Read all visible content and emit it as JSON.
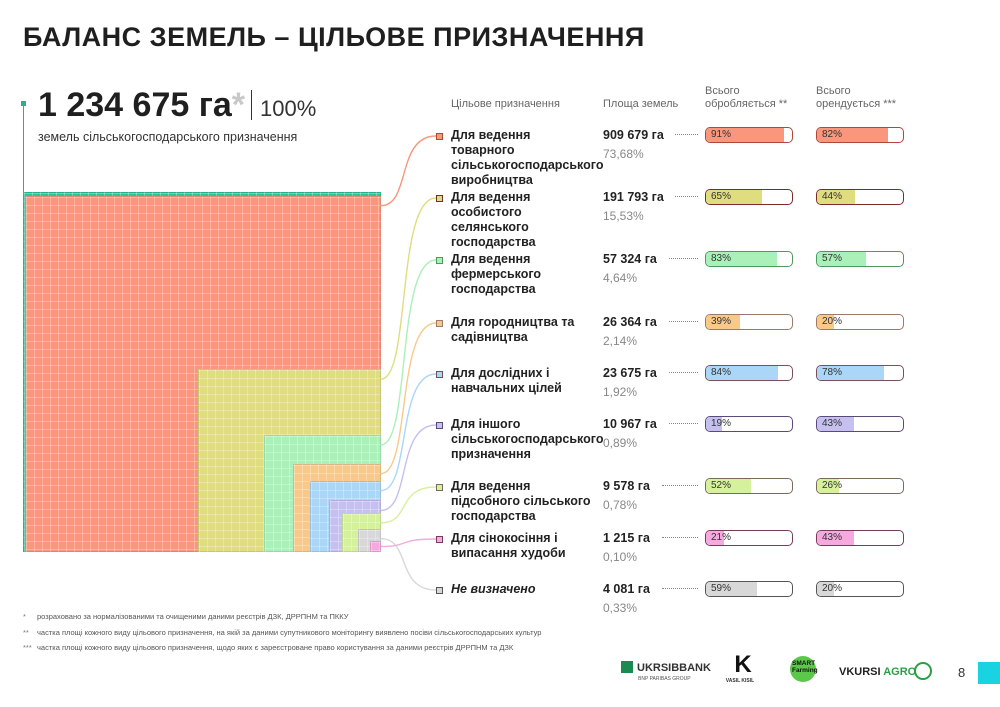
{
  "title": "БАЛАНС ЗЕМЕЛЬ – ЦІЛЬОВЕ ПРИЗНАЧЕННЯ",
  "total": {
    "value": "1 234 675 га",
    "asterisk": "*",
    "percent": "100%",
    "subtitle": "земель сільськогосподарського призначення"
  },
  "colors": {
    "total": "#2bc59a",
    "marker": "#3aa88a",
    "accent": "#19d3e0"
  },
  "headers": {
    "category": "Цільове призначення",
    "area": "Площа земель",
    "cultivated": "Всього\nобробляється **",
    "rented": "Всього\nорендується ***"
  },
  "chart_data": {
    "type": "treemap",
    "total_ha": 1234675,
    "categories": [
      "Для ведення товарного сільськогосподарського виробництва",
      "Для ведення особистого селянського господарства",
      "Для ведення фермерського господарства",
      "Для городництва та садівництва",
      "Для дослідних і навчальних цілей",
      "Для іншого сільськогосподарського призначення",
      "Для ведення підсобного сільського господарства",
      "Для сінокосіння і випасання худоби",
      "Не визначено"
    ],
    "area_ha": [
      909679,
      191793,
      57324,
      26364,
      23675,
      10967,
      9578,
      1215,
      4081
    ],
    "share_pct": [
      73.68,
      15.53,
      4.64,
      2.14,
      1.92,
      0.89,
      0.78,
      0.1,
      0.33
    ],
    "series": [
      {
        "name": "Всього обробляється **",
        "values": [
          91,
          65,
          83,
          39,
          84,
          19,
          52,
          21,
          59
        ]
      },
      {
        "name": "Всього орендується ***",
        "values": [
          82,
          44,
          57,
          20,
          78,
          43,
          26,
          43,
          20
        ]
      }
    ]
  },
  "rows": [
    {
      "label": "Для ведення товарного сільськогосподарського виробництва",
      "area": "909 679 га",
      "share": "73,68%",
      "cult_label": "91%",
      "rent_label": "82%",
      "color": "#f9967c",
      "border": "#b0483a",
      "italic": false
    },
    {
      "label": "Для ведення особистого селянського господарства",
      "area": "191 793 га",
      "share": "15,53%",
      "cult_label": "65%",
      "rent_label": "44%",
      "color": "#e0dd80",
      "border": "#7a2c2c",
      "italic": false
    },
    {
      "label": "Для ведення фермерського господарства",
      "area": "57 324 га",
      "share": "4,64%",
      "cult_label": "83%",
      "rent_label": "57%",
      "color": "#a9f1b8",
      "border": "#4e9a5e",
      "italic": false
    },
    {
      "label": "Для городництва та садівництва",
      "area": "26 364 га",
      "share": "2,14%",
      "cult_label": "39%",
      "rent_label": "20%",
      "color": "#f9c98a",
      "border": "#9b7a6a",
      "italic": false
    },
    {
      "label": "Для дослідних і навчальних цілей",
      "area": "23 675 га",
      "share": "1,92%",
      "cult_label": "84%",
      "rent_label": "78%",
      "color": "#aad6f7",
      "border": "#7a4e5a",
      "italic": false
    },
    {
      "label": "Для іншого сільськогосподарського призначення",
      "area": "10 967 га",
      "share": "0,89%",
      "cult_label": "19%",
      "rent_label": "43%",
      "color": "#c6c0f1",
      "border": "#5a4a7a",
      "italic": false
    },
    {
      "label": "Для ведення підсобного сільського господарства",
      "area": "9 578 га",
      "share": "0,78%",
      "cult_label": "52%",
      "rent_label": "26%",
      "color": "#d6f19c",
      "border": "#7a6a5a",
      "italic": false
    },
    {
      "label": "Для сінокосіння і випасання худоби",
      "area": "1 215 га",
      "share": "0,10%",
      "cult_label": "21%",
      "rent_label": "43%",
      "color": "#f6a9de",
      "border": "#7a3a5a",
      "italic": false
    },
    {
      "label": "Не визначено",
      "area": "4 081 га",
      "share": "0,33%",
      "cult_label": "59%",
      "rent_label": "20%",
      "color": "#d8d8d8",
      "border": "#555555",
      "italic": true
    }
  ],
  "footnotes": [
    {
      "mark": "*",
      "text": "розраховано за нормалізованими та очищеними даними реєстрів ДЗК, ДРРПНМ та ПККУ"
    },
    {
      "mark": "**",
      "text": "частка площі кожного виду цільового призначення, на якій за даними супутникового моніторингу виявлено посіви сільськогосподарських культур"
    },
    {
      "mark": "***",
      "text": "частка площі кожного виду цільового призначення, щодо яких є зареєстроване право користування за даними реєстрів ДРРПНМ та ДЗК"
    }
  ],
  "logos": {
    "ukrsib": "UKRSIBBANK",
    "ukrsib_sub": "BNP PARIBAS GROUP",
    "vasil_mark": "K",
    "vasil": "VASIL KISIL",
    "smart": "SMART\nFarming",
    "vkursi": "VKURSI",
    "agro": "AGRO"
  },
  "page_number": "8"
}
